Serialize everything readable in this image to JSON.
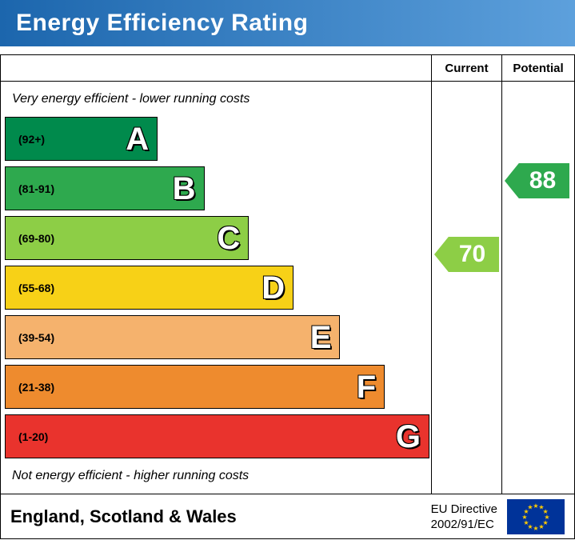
{
  "title": "Energy Efficiency Rating",
  "columns": {
    "current": "Current",
    "potential": "Potential"
  },
  "captions": {
    "top": "Very energy efficient - lower running costs",
    "bottom": "Not energy efficient - higher running costs"
  },
  "chart_data": {
    "type": "bar",
    "subtype": "epc-energy-efficiency-rating",
    "title": "Energy Efficiency Rating",
    "bands": [
      {
        "letter": "A",
        "range_label": "(92+)",
        "min": 92,
        "max": 100,
        "color": "#008a4c",
        "width_pct": 36
      },
      {
        "letter": "B",
        "range_label": "(81-91)",
        "min": 81,
        "max": 91,
        "color": "#2ea94e",
        "width_pct": 47
      },
      {
        "letter": "C",
        "range_label": "(69-80)",
        "min": 69,
        "max": 80,
        "color": "#8dce46",
        "width_pct": 57.5
      },
      {
        "letter": "D",
        "range_label": "(55-68)",
        "min": 55,
        "max": 68,
        "color": "#f7d117",
        "width_pct": 68
      },
      {
        "letter": "E",
        "range_label": "(39-54)",
        "min": 39,
        "max": 54,
        "color": "#f5b26d",
        "width_pct": 79
      },
      {
        "letter": "F",
        "range_label": "(21-38)",
        "min": 21,
        "max": 38,
        "color": "#ee8b2e",
        "width_pct": 89.5
      },
      {
        "letter": "G",
        "range_label": "(1-20)",
        "min": 1,
        "max": 20,
        "color": "#e9332d",
        "width_pct": 100
      }
    ],
    "current": {
      "value": 70,
      "band": "C",
      "color": "#8dce46"
    },
    "potential": {
      "value": 88,
      "band": "B",
      "color": "#2ea94e"
    }
  },
  "footer": {
    "region": "England, Scotland & Wales",
    "directive": [
      "EU Directive",
      "2002/91/EC"
    ]
  },
  "colors": {
    "banner_gradient_left": "#1c66ad",
    "banner_gradient_right": "#5da0dc",
    "banner_text": "#ffffff",
    "border": "#000000",
    "eu_flag_blue": "#003399",
    "eu_flag_star": "#ffcc00"
  }
}
